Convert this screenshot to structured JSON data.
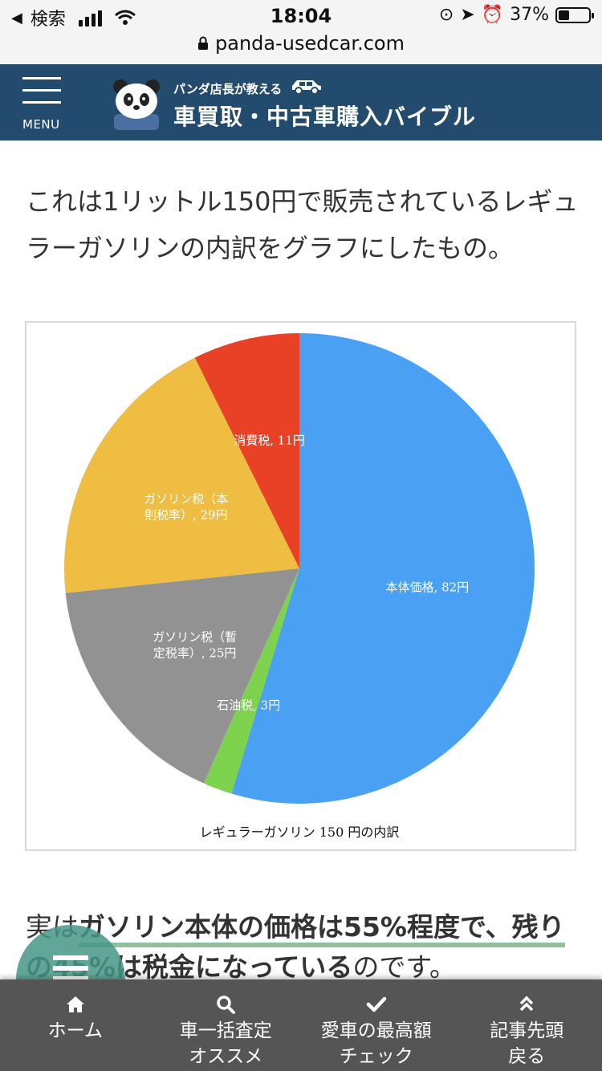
{
  "status_bar": {
    "back_label": "検索",
    "time": "18:04",
    "battery_text": "37%",
    "battery_level": 0.37,
    "url": "panda-usedcar.com"
  },
  "header": {
    "menu_label": "MENU",
    "logo_subtitle": "パンダ店長が教える",
    "logo_title": "車買取・中古車購入バイブル"
  },
  "content": {
    "intro_text": "これは1リットル150円で販売されているレギュラーガソリンの内訳をグラフにしたもの。",
    "para_prefix": "実は",
    "para_highlight": "ガソリン本体の価格は55%程度で、残りの45%は税金になっている",
    "para_suffix": "のです。"
  },
  "chart_data": {
    "type": "pie",
    "title": "レギュラーガソリン 150 円の内訳",
    "slices": [
      {
        "label": "本体価格, 82円",
        "value": 82,
        "color": "#4aa1f3"
      },
      {
        "label": "石油税, 3円",
        "value": 3,
        "color": "#7ed34e"
      },
      {
        "label": "ガソリン税（暫定税率）, 25円",
        "value": 25,
        "color": "#929292"
      },
      {
        "label": "ガソリン税（本則税率）, 29円",
        "value": 29,
        "color": "#eebd41"
      },
      {
        "label": "消費税, 11円",
        "value": 11,
        "color": "#e84126"
      }
    ]
  },
  "bottom_nav": [
    {
      "label": "ホーム",
      "icon": "home-icon"
    },
    {
      "label": "車一括査定\nオススメ",
      "icon": "search-icon"
    },
    {
      "label": "愛車の最高額\nチェック",
      "icon": "check-icon"
    },
    {
      "label": "記事先頭\n戻る",
      "icon": "chevron-up-icon"
    }
  ]
}
